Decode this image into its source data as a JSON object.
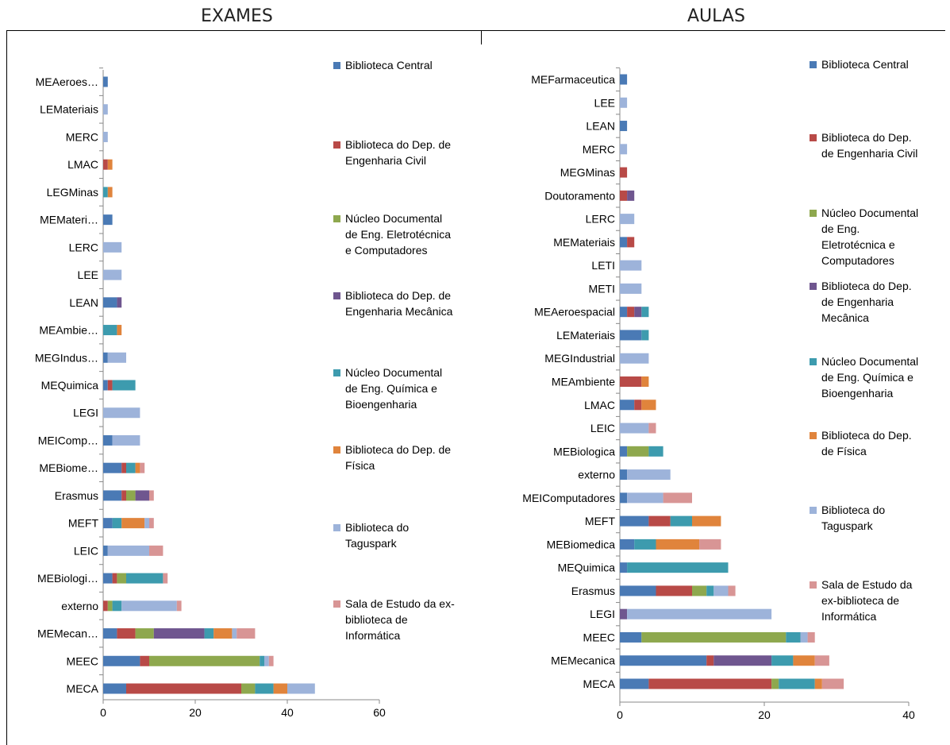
{
  "headers": {
    "left": "EXAMES",
    "right": "AULAS"
  },
  "colors": {
    "Biblioteca Central": "#4a7ab5",
    "Biblioteca do Dep. de Engenharia Civil": "#b84a47",
    "Núcleo Documental de Eng. Eletrotécnica e Computadores": "#8ea84e",
    "Biblioteca do Dep. de Engenharia Mecânica": "#6f568f",
    "Núcleo Documental de Eng. Química e Bioengenharia": "#3d9bae",
    "Biblioteca do Dep. de Física": "#e0843c",
    "Biblioteca do Taguspark": "#9db3da",
    "Sala de Estudo da ex-biblioteca de Informática": "#d89595"
  },
  "chart_data": [
    {
      "type": "bar",
      "orientation": "horizontal",
      "stacked": true,
      "title": "EXAMES",
      "xlim": [
        0,
        60
      ],
      "xticks": [
        0,
        20,
        40,
        60
      ],
      "legend_position": "right",
      "series_names": [
        "Biblioteca Central",
        "Biblioteca do Dep. de Engenharia Civil",
        "Núcleo Documental de Eng. Eletrotécnica e Computadores",
        "Biblioteca do Dep. de Engenharia Mecânica",
        "Núcleo Documental de Eng. Química e Bioengenharia",
        "Biblioteca do Dep. de Física",
        "Biblioteca do Taguspark",
        "Sala de Estudo da ex-biblioteca de Informática"
      ],
      "legend_labels": [
        [
          "Biblioteca Central"
        ],
        [
          "Biblioteca do Dep. de",
          "Engenharia Civil"
        ],
        [
          "Núcleo Documental",
          "de Eng. Eletrotécnica",
          "e Computadores"
        ],
        [
          "Biblioteca do Dep. de",
          "Engenharia Mecânica"
        ],
        [
          "Núcleo Documental",
          "de Eng. Química e",
          "Bioengenharia"
        ],
        [
          "Biblioteca do Dep. de",
          "Física"
        ],
        [
          "Biblioteca do",
          "Taguspark"
        ],
        [
          "Sala de Estudo da ex-",
          "biblioteca de",
          "Informática"
        ]
      ],
      "categories": [
        "MEAeroes…",
        "LEMateriais",
        "MERC",
        "LMAC",
        "LEGMinas",
        "MEMateri…",
        "LERC",
        "LEE",
        "LEAN",
        "MEAmbie…",
        "MEGIndus…",
        "MEQuimica",
        "LEGI",
        "MEIComp…",
        "MEBiome…",
        "Erasmus",
        "MEFT",
        "LEIC",
        "MEBiologi…",
        "externo",
        "MEMecan…",
        "MEEC",
        "MECA"
      ],
      "values": [
        [
          1,
          0,
          0,
          0,
          0,
          0,
          0,
          0
        ],
        [
          0,
          0,
          0,
          0,
          0,
          0,
          1,
          0
        ],
        [
          0,
          0,
          0,
          0,
          0,
          0,
          1,
          0
        ],
        [
          0,
          1,
          0,
          0,
          0,
          1,
          0,
          0
        ],
        [
          0,
          0,
          0,
          0,
          1,
          1,
          0,
          0
        ],
        [
          2,
          0,
          0,
          0,
          0,
          0,
          0,
          0
        ],
        [
          0,
          0,
          0,
          0,
          0,
          0,
          4,
          0
        ],
        [
          0,
          0,
          0,
          0,
          0,
          0,
          4,
          0
        ],
        [
          3,
          0,
          0,
          1,
          0,
          0,
          0,
          0
        ],
        [
          0,
          0,
          0,
          0,
          3,
          1,
          0,
          0
        ],
        [
          1,
          0,
          0,
          0,
          0,
          0,
          4,
          0
        ],
        [
          1,
          1,
          0,
          0,
          5,
          0,
          0,
          0
        ],
        [
          0,
          0,
          0,
          0,
          0,
          0,
          8,
          0
        ],
        [
          2,
          0,
          0,
          0,
          0,
          0,
          6,
          0
        ],
        [
          4,
          1,
          0,
          0,
          2,
          1,
          0,
          1
        ],
        [
          4,
          1,
          2,
          3,
          0,
          0,
          0,
          1
        ],
        [
          2,
          0,
          0,
          0,
          2,
          5,
          1,
          1
        ],
        [
          1,
          0,
          0,
          0,
          0,
          0,
          9,
          3
        ],
        [
          2,
          1,
          2,
          0,
          8,
          0,
          0,
          1
        ],
        [
          0,
          1,
          1,
          0,
          2,
          0,
          12,
          1
        ],
        [
          3,
          4,
          4,
          11,
          2,
          4,
          1,
          4
        ],
        [
          8,
          2,
          24,
          0,
          1,
          0,
          1,
          1
        ],
        [
          5,
          25,
          3,
          0,
          4,
          3,
          6,
          0
        ]
      ]
    },
    {
      "type": "bar",
      "orientation": "horizontal",
      "stacked": true,
      "title": "AULAS",
      "xlim": [
        0,
        40
      ],
      "xticks": [
        0,
        20,
        40
      ],
      "legend_position": "right",
      "series_names": [
        "Biblioteca Central",
        "Biblioteca do Dep. de Engenharia Civil",
        "Núcleo Documental de Eng. Eletrotécnica e Computadores",
        "Biblioteca do Dep. de Engenharia Mecânica",
        "Núcleo Documental de Eng. Química e Bioengenharia",
        "Biblioteca do Dep. de Física",
        "Biblioteca do Taguspark",
        "Sala de Estudo da ex-biblioteca de Informática"
      ],
      "legend_labels": [
        [
          "Biblioteca Central"
        ],
        [
          "Biblioteca do Dep.",
          "de Engenharia Civil"
        ],
        [
          "Núcleo Documental",
          "de Eng.",
          "Eletrotécnica e",
          "Computadores"
        ],
        [
          "Biblioteca do Dep.",
          "de Engenharia",
          "Mecânica"
        ],
        [
          "Núcleo Documental",
          "de Eng. Química e",
          "Bioengenharia"
        ],
        [
          "Biblioteca do Dep.",
          "de Física"
        ],
        [
          "Biblioteca do",
          "Taguspark"
        ],
        [
          "Sala de Estudo da",
          "ex-biblioteca de",
          "Informática"
        ]
      ],
      "categories": [
        "MEFarmaceutica",
        "LEE",
        "LEAN",
        "MERC",
        "MEGMinas",
        "Doutoramento",
        "LERC",
        "MEMateriais",
        "LETI",
        "METI",
        "MEAeroespacial",
        "LEMateriais",
        "MEGIndustrial",
        "MEAmbiente",
        "LMAC",
        "LEIC",
        "MEBiologica",
        "externo",
        "MEIComputadores",
        "MEFT",
        "MEBiomedica",
        "MEQuimica",
        "Erasmus",
        "LEGI",
        "MEEC",
        "MEMecanica",
        "MECA"
      ],
      "values": [
        [
          1,
          0,
          0,
          0,
          0,
          0,
          0,
          0
        ],
        [
          0,
          0,
          0,
          0,
          0,
          0,
          1,
          0
        ],
        [
          1,
          0,
          0,
          0,
          0,
          0,
          0,
          0
        ],
        [
          0,
          0,
          0,
          0,
          0,
          0,
          1,
          0
        ],
        [
          0,
          1,
          0,
          0,
          0,
          0,
          0,
          0
        ],
        [
          0,
          1,
          0,
          1,
          0,
          0,
          0,
          0
        ],
        [
          0,
          0,
          0,
          0,
          0,
          0,
          2,
          0
        ],
        [
          1,
          1,
          0,
          0,
          0,
          0,
          0,
          0
        ],
        [
          0,
          0,
          0,
          0,
          0,
          0,
          3,
          0
        ],
        [
          0,
          0,
          0,
          0,
          0,
          0,
          3,
          0
        ],
        [
          1,
          1,
          0,
          1,
          1,
          0,
          0,
          0
        ],
        [
          3,
          0,
          0,
          0,
          1,
          0,
          0,
          0
        ],
        [
          0,
          0,
          0,
          0,
          0,
          0,
          4,
          0
        ],
        [
          0,
          3,
          0,
          0,
          0,
          1,
          0,
          0
        ],
        [
          2,
          1,
          0,
          0,
          0,
          2,
          0,
          0
        ],
        [
          0,
          0,
          0,
          0,
          0,
          0,
          4,
          1
        ],
        [
          1,
          0,
          3,
          0,
          2,
          0,
          0,
          0
        ],
        [
          1,
          0,
          0,
          0,
          0,
          0,
          6,
          0
        ],
        [
          1,
          0,
          0,
          0,
          0,
          0,
          5,
          4
        ],
        [
          4,
          3,
          0,
          0,
          3,
          4,
          0,
          0
        ],
        [
          2,
          0,
          0,
          0,
          3,
          6,
          0,
          3
        ],
        [
          1,
          0,
          0,
          0,
          14,
          0,
          0,
          0
        ],
        [
          5,
          5,
          2,
          0,
          1,
          0,
          2,
          1
        ],
        [
          0,
          0,
          0,
          1,
          0,
          0,
          20,
          0
        ],
        [
          3,
          0,
          20,
          0,
          2,
          0,
          1,
          1
        ],
        [
          12,
          1,
          0,
          8,
          3,
          3,
          0,
          2
        ],
        [
          4,
          17,
          1,
          0,
          5,
          1,
          0,
          3
        ]
      ]
    }
  ]
}
